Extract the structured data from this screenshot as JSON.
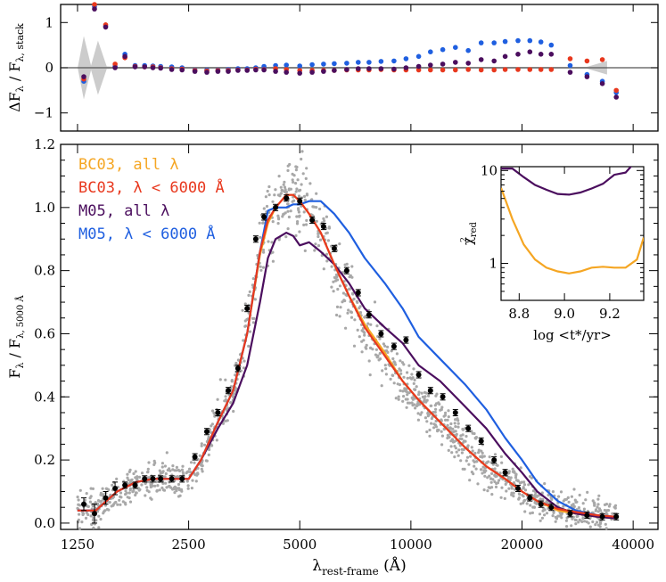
{
  "colors": {
    "bc03_all": "#f5a623",
    "bc03_short": "#e8381e",
    "m05_all": "#4b0e5e",
    "m05_short": "#1f5fe0",
    "stack": "#000000",
    "scatter": "#a8a8a8",
    "band": "#cccccc"
  },
  "chart_data": [
    {
      "type": "scatter",
      "id": "residuals",
      "ylabel_main": "ΔF",
      "ylabel_sub1": "λ",
      "ylabel_mid": " / F",
      "ylabel_sub2": "λ, stack",
      "ylim": [
        -1.4,
        1.4
      ],
      "yticks": [
        -1,
        0,
        1
      ],
      "xlim_log10": [
        3.0512,
        4.6693
      ],
      "series": [
        {
          "key": "m05_short",
          "x": [
            1300,
            1390,
            1490,
            1580,
            1680,
            1790,
            1900,
            2000,
            2100,
            2250,
            2400,
            2600,
            2800,
            3000,
            3200,
            3400,
            3600,
            3800,
            4000,
            4300,
            4600,
            5000,
            5400,
            5800,
            6200,
            6700,
            7200,
            7700,
            8300,
            9000,
            9700,
            10500,
            11300,
            12200,
            13200,
            14300,
            15500,
            16800,
            18000,
            19500,
            21000,
            22500,
            24000,
            27000,
            30000,
            33000,
            36000
          ],
          "y": [
            -0.3,
            1.35,
            0.92,
            0.03,
            0.3,
            0.05,
            0.05,
            0.04,
            0.03,
            0.02,
            0.0,
            -0.05,
            -0.05,
            -0.05,
            -0.04,
            -0.02,
            -0.02,
            0.0,
            0.03,
            0.05,
            0.06,
            0.04,
            0.07,
            0.08,
            0.09,
            0.1,
            0.12,
            0.12,
            0.14,
            0.15,
            0.2,
            0.25,
            0.35,
            0.4,
            0.45,
            0.38,
            0.55,
            0.55,
            0.58,
            0.6,
            0.6,
            0.57,
            0.5,
            0.05,
            -0.15,
            -0.3,
            -0.55
          ]
        },
        {
          "key": "bc03_short",
          "x": [
            1300,
            1390,
            1490,
            1580,
            1680,
            1790,
            1900,
            2000,
            2100,
            2250,
            2400,
            2600,
            2800,
            3000,
            3200,
            3400,
            3600,
            3800,
            4000,
            4300,
            4600,
            5000,
            5400,
            5800,
            6200,
            6700,
            7200,
            7700,
            8300,
            9000,
            9700,
            10500,
            11300,
            12200,
            13200,
            14300,
            15500,
            16800,
            18000,
            19500,
            21000,
            22500,
            24000,
            27000,
            30000,
            33000,
            36000
          ],
          "y": [
            -0.25,
            1.4,
            0.95,
            0.08,
            0.22,
            0.03,
            0.02,
            0.02,
            0.0,
            -0.02,
            -0.03,
            -0.06,
            -0.07,
            -0.06,
            -0.06,
            -0.05,
            -0.05,
            -0.03,
            -0.04,
            -0.02,
            -0.04,
            -0.06,
            -0.06,
            -0.06,
            -0.06,
            -0.05,
            -0.05,
            -0.05,
            -0.04,
            -0.05,
            -0.05,
            -0.05,
            -0.05,
            -0.05,
            -0.05,
            -0.04,
            -0.05,
            -0.05,
            -0.04,
            -0.04,
            -0.04,
            -0.04,
            -0.04,
            0.2,
            0.15,
            0.18,
            -0.5
          ]
        },
        {
          "key": "m05_all",
          "x": [
            1300,
            1390,
            1490,
            1580,
            1680,
            1790,
            1900,
            2000,
            2100,
            2250,
            2400,
            2600,
            2800,
            3000,
            3200,
            3400,
            3600,
            3800,
            4000,
            4300,
            4600,
            5000,
            5400,
            5800,
            6200,
            6700,
            7200,
            7700,
            8300,
            9000,
            9700,
            10500,
            11300,
            12200,
            13200,
            14300,
            15500,
            16800,
            18000,
            19500,
            21000,
            22500,
            24000,
            27000,
            30000,
            33000,
            36000
          ],
          "y": [
            -0.2,
            1.3,
            0.9,
            0.0,
            0.25,
            0.02,
            0.02,
            0.0,
            -0.01,
            -0.04,
            -0.05,
            -0.08,
            -0.1,
            -0.08,
            -0.08,
            -0.06,
            -0.06,
            -0.05,
            -0.05,
            -0.08,
            -0.1,
            -0.12,
            -0.1,
            -0.08,
            -0.06,
            -0.04,
            -0.02,
            -0.02,
            -0.02,
            -0.03,
            0.0,
            0.03,
            0.06,
            0.08,
            0.12,
            0.1,
            0.18,
            0.15,
            0.25,
            0.3,
            0.35,
            0.3,
            0.3,
            -0.1,
            -0.2,
            -0.35,
            -0.65
          ]
        }
      ]
    },
    {
      "type": "line",
      "id": "seds",
      "xlabel_main": "λ",
      "xlabel_sub": "rest-frame",
      "xlabel_unit": " (Å)",
      "ylabel_main": "F",
      "ylabel_sub1": "λ",
      "ylabel_mid": " / F",
      "ylabel_sub2": "λ, 5000 Å",
      "xticks": [
        1250,
        2500,
        5000,
        10000,
        20000,
        40000
      ],
      "xlim": [
        1125,
        46700
      ],
      "ylim": [
        -0.02,
        1.2
      ],
      "yticks": [
        0.0,
        0.2,
        0.4,
        0.6,
        0.8,
        1.0,
        1.2
      ],
      "legend_position": "top-left",
      "series": [
        {
          "key": "bc03_all",
          "name": "BC03, all λ",
          "x": [
            1250,
            1400,
            1600,
            1800,
            2000,
            2200,
            2500,
            2700,
            3000,
            3300,
            3600,
            3900,
            4100,
            4300,
            4600,
            4800,
            5000,
            5300,
            5700,
            6200,
            6800,
            7500,
            8500,
            9500,
            10500,
            12000,
            14000,
            16000,
            18000,
            20000,
            22000,
            25000,
            28000,
            32000,
            36000
          ],
          "y": [
            0.04,
            0.04,
            0.1,
            0.13,
            0.14,
            0.14,
            0.14,
            0.2,
            0.32,
            0.42,
            0.6,
            0.85,
            0.95,
            1.0,
            1.04,
            1.04,
            1.02,
            0.98,
            0.92,
            0.82,
            0.72,
            0.63,
            0.54,
            0.45,
            0.39,
            0.32,
            0.24,
            0.18,
            0.14,
            0.1,
            0.07,
            0.04,
            0.03,
            0.02,
            0.015
          ]
        },
        {
          "key": "bc03_short",
          "name": "BC03, λ < 6000 Å",
          "x": [
            1250,
            1400,
            1600,
            1800,
            2000,
            2200,
            2500,
            2700,
            3000,
            3300,
            3600,
            3900,
            4100,
            4300,
            4600,
            4800,
            5000,
            5300,
            5700,
            6200,
            6800,
            7500,
            8500,
            9500,
            10500,
            12000,
            14000,
            16000,
            18000,
            20000,
            22000,
            25000,
            28000,
            32000,
            36000
          ],
          "y": [
            0.04,
            0.04,
            0.1,
            0.13,
            0.14,
            0.14,
            0.14,
            0.2,
            0.32,
            0.42,
            0.6,
            0.86,
            0.96,
            1.0,
            1.04,
            1.04,
            1.02,
            0.98,
            0.92,
            0.82,
            0.72,
            0.62,
            0.53,
            0.45,
            0.39,
            0.32,
            0.24,
            0.18,
            0.14,
            0.1,
            0.07,
            0.045,
            0.035,
            0.025,
            0.02
          ]
        },
        {
          "key": "m05_all",
          "name": "M05, all λ",
          "x": [
            1250,
            1400,
            1600,
            1800,
            2000,
            2200,
            2500,
            2700,
            3000,
            3300,
            3600,
            3900,
            4100,
            4300,
            4600,
            4800,
            5000,
            5300,
            5700,
            6200,
            6800,
            7500,
            8500,
            9500,
            10500,
            12000,
            14000,
            16000,
            18000,
            20000,
            22000,
            25000,
            28000,
            32000,
            36000
          ],
          "y": [
            0.04,
            0.04,
            0.1,
            0.13,
            0.14,
            0.14,
            0.14,
            0.2,
            0.3,
            0.38,
            0.5,
            0.7,
            0.84,
            0.9,
            0.92,
            0.91,
            0.88,
            0.89,
            0.86,
            0.82,
            0.76,
            0.68,
            0.62,
            0.57,
            0.5,
            0.45,
            0.37,
            0.3,
            0.22,
            0.16,
            0.1,
            0.05,
            0.03,
            0.02,
            0.015
          ]
        },
        {
          "key": "m05_short",
          "name": "M05, λ < 6000 Å",
          "x": [
            1250,
            1400,
            1600,
            1800,
            2000,
            2200,
            2500,
            2700,
            3000,
            3300,
            3600,
            3900,
            4100,
            4300,
            4600,
            4800,
            5000,
            5300,
            5700,
            6200,
            6800,
            7500,
            8500,
            9500,
            10500,
            12000,
            14000,
            16000,
            18000,
            20000,
            22000,
            25000,
            28000,
            32000,
            36000
          ],
          "y": [
            0.04,
            0.04,
            0.1,
            0.13,
            0.14,
            0.14,
            0.14,
            0.2,
            0.32,
            0.42,
            0.6,
            0.86,
            0.99,
            1.0,
            1.0,
            1.01,
            1.01,
            1.02,
            1.02,
            0.98,
            0.92,
            0.84,
            0.76,
            0.68,
            0.59,
            0.52,
            0.44,
            0.36,
            0.27,
            0.2,
            0.13,
            0.07,
            0.04,
            0.025,
            0.02
          ]
        }
      ],
      "stack": {
        "x": [
          1300,
          1390,
          1490,
          1580,
          1680,
          1790,
          1900,
          2000,
          2100,
          2250,
          2400,
          2600,
          2800,
          3000,
          3200,
          3400,
          3600,
          3800,
          4000,
          4300,
          4600,
          5000,
          5400,
          5800,
          6200,
          6700,
          7200,
          7700,
          8300,
          9000,
          9700,
          10500,
          11300,
          12200,
          13200,
          14300,
          15500,
          16800,
          18000,
          19500,
          21000,
          22500,
          24000,
          27000,
          30000,
          33000,
          36000
        ],
        "y": [
          0.06,
          0.03,
          0.08,
          0.11,
          0.12,
          0.12,
          0.14,
          0.14,
          0.14,
          0.14,
          0.14,
          0.21,
          0.29,
          0.35,
          0.42,
          0.49,
          0.68,
          0.9,
          0.97,
          1.0,
          1.03,
          1.02,
          0.96,
          0.94,
          0.87,
          0.8,
          0.73,
          0.66,
          0.6,
          0.56,
          0.58,
          0.47,
          0.42,
          0.4,
          0.35,
          0.3,
          0.26,
          0.2,
          0.16,
          0.11,
          0.08,
          0.06,
          0.05,
          0.03,
          0.025,
          0.02,
          0.02
        ],
        "err": [
          0.02,
          0.03,
          0.02,
          0.02,
          0.01,
          0.01,
          0.01,
          0.01,
          0.01,
          0.01,
          0.01,
          0.01,
          0.01,
          0.01,
          0.01,
          0.01,
          0.01,
          0.01,
          0.01,
          0.01,
          0.01,
          0.01,
          0.01,
          0.01,
          0.01,
          0.01,
          0.01,
          0.01,
          0.01,
          0.01,
          0.01,
          0.01,
          0.01,
          0.01,
          0.01,
          0.01,
          0.01,
          0.01,
          0.01,
          0.01,
          0.01,
          0.01,
          0.01,
          0.01,
          0.01,
          0.01,
          0.01
        ]
      }
    },
    {
      "type": "line",
      "id": "inset",
      "xlabel": "log <t*/yr>",
      "ylabel_main": "χ",
      "ylabel_sup": "2",
      "ylabel_sub": "red",
      "xlim": [
        8.72,
        9.35
      ],
      "xticks": [
        8.8,
        9.0,
        9.2
      ],
      "ylim_log": [
        0.4,
        11
      ],
      "yticks": [
        1,
        10
      ],
      "series": [
        {
          "key": "m05_all",
          "x": [
            8.72,
            8.77,
            8.82,
            8.87,
            8.92,
            8.97,
            9.02,
            9.07,
            9.12,
            9.17,
            9.22,
            9.27,
            9.32
          ],
          "y": [
            10.5,
            10.5,
            8.5,
            7,
            6.2,
            5.6,
            5.5,
            5.8,
            6.4,
            7.2,
            9,
            9.5,
            13
          ]
        },
        {
          "key": "bc03_all",
          "x": [
            8.72,
            8.77,
            8.82,
            8.87,
            8.92,
            8.97,
            9.02,
            9.07,
            9.12,
            9.17,
            9.22,
            9.27,
            9.32,
            9.35
          ],
          "y": [
            6.5,
            3,
            1.6,
            1.1,
            0.9,
            0.82,
            0.78,
            0.82,
            0.9,
            0.92,
            0.9,
            0.9,
            1.1,
            1.9
          ]
        }
      ]
    }
  ]
}
